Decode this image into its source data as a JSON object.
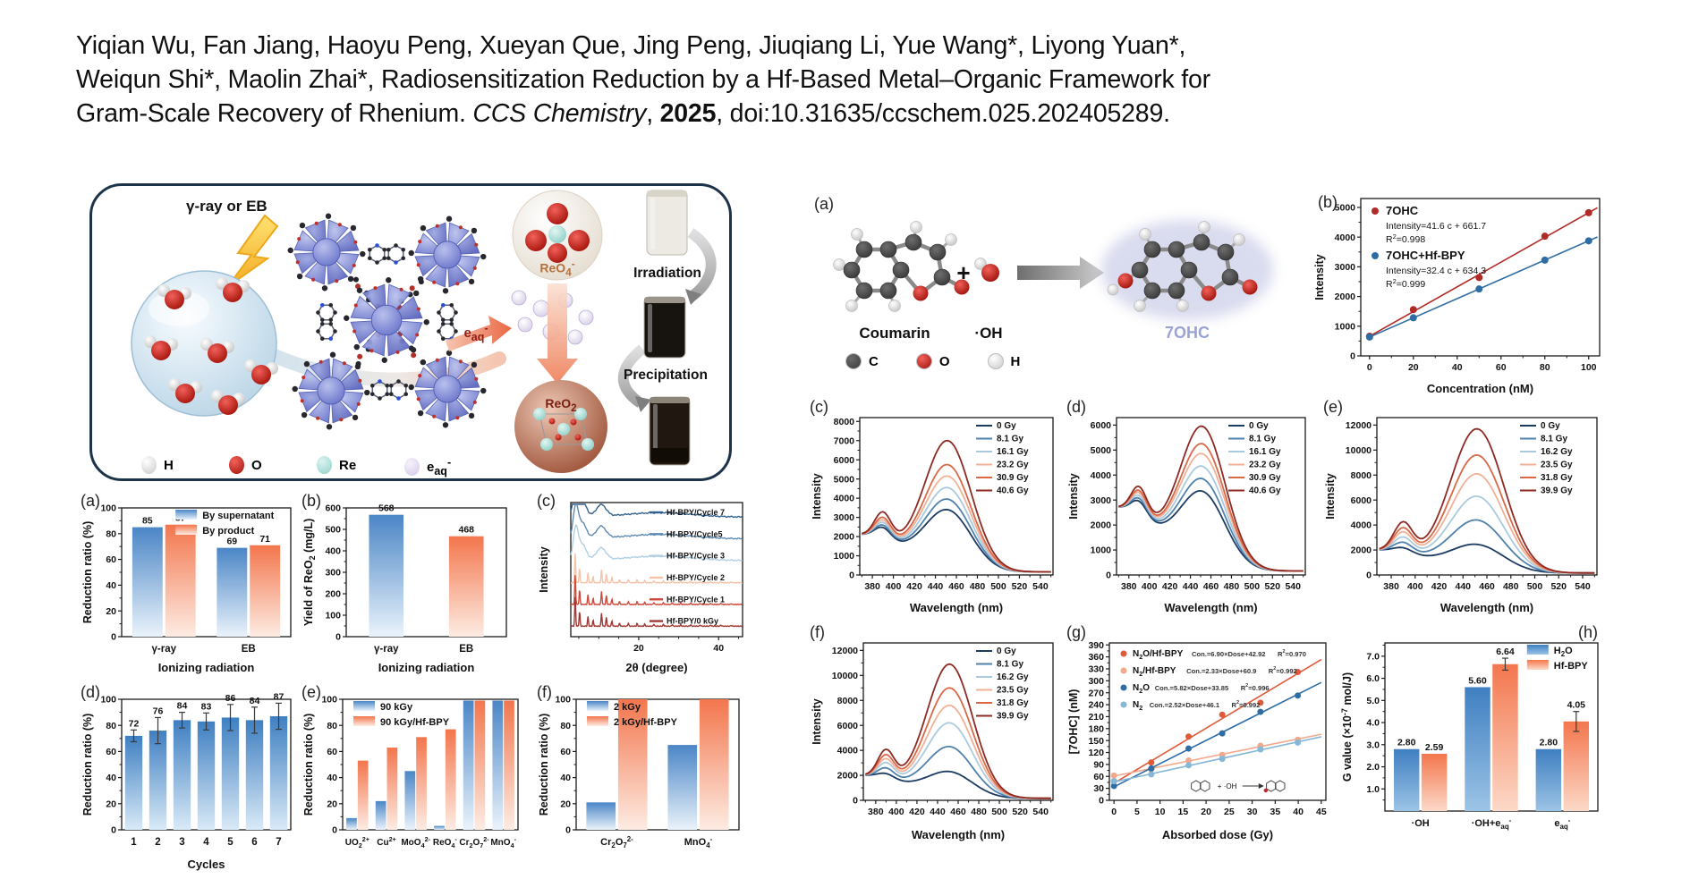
{
  "citation": {
    "line1": "Yiqian Wu, Fan Jiang, Haoyu Peng, Xueyan Que, Jing Peng, Jiuqiang Li, Yue Wang*, Liyong Yuan*,",
    "line2": "Weiqun Shi*, Maolin Zhai*, Radiosensitization Reduction by a Hf-Based Metal–Organic Framework for",
    "line3_prefix": "Gram-Scale Recovery of Rhenium. ",
    "journal": "CCS Chemistry",
    "line3_mid": ", ",
    "year": "2025",
    "line3_suffix": ", doi:10.31635/ccschem.025.202405289."
  },
  "abstract": {
    "beam_label": "γ-ray or EB",
    "eaq_label": "e_aq_^-^",
    "reo4_label": "ReO_4_^-^",
    "reo2_label": "ReO_2_",
    "irradiation_label": "Irradiation",
    "precipitation_label": "Precipitation",
    "legend": [
      {
        "label": "H",
        "c0": "#ffffff",
        "c1": "#c9c9c9"
      },
      {
        "label": "O",
        "c0": "#f2615a",
        "c1": "#9c120a"
      },
      {
        "label": "Re",
        "c0": "#dcf4f0",
        "c1": "#8fcfc8"
      },
      {
        "label": "e_aq_^-^",
        "c0": "#f6f2fb",
        "c1": "#d4c9e8"
      }
    ]
  },
  "scheme": {
    "panel": "(a)",
    "reactant_label": "Coumarin",
    "plus_sign": "+",
    "radical_label": "·OH",
    "product_label": "7OHC",
    "product_color": "#9aa3d4",
    "atom_legend": [
      {
        "label": "C",
        "c0": "#6a6a6a",
        "c1": "#3a3a3a"
      },
      {
        "label": "O",
        "c0": "#f2615a",
        "c1": "#9c120a"
      },
      {
        "label": "H",
        "c0": "#ffffff",
        "c1": "#c9c9c9"
      }
    ]
  },
  "chart_data": [
    {
      "id": "aL",
      "panel": "(a)",
      "type": "groupbar",
      "ylabel": "Reduction ratio (%)",
      "xlabel": "Ionizing radiation",
      "ylim": [
        0,
        100
      ],
      "ytick_step": 20,
      "categories": [
        "γ-ray",
        "EB"
      ],
      "legend_pos": "tr",
      "show_values": true,
      "series": [
        {
          "name": "By supernatant",
          "colors": [
            "#4b86c6",
            "#eaf3fb"
          ],
          "values": [
            85,
            69
          ],
          "value_labels": [
            "85",
            "69"
          ]
        },
        {
          "name": "By product",
          "colors": [
            "#f3764d",
            "#fdece3"
          ],
          "values": [
            87,
            71
          ],
          "value_labels": [
            "87",
            "71"
          ]
        }
      ]
    },
    {
      "id": "bL",
      "panel": "(b)",
      "type": "groupbar",
      "ylabel": "Yield of ReO_2_ (mg/L)",
      "xlabel": "Ionizing radiation",
      "ylim": [
        0,
        600
      ],
      "ytick_step": 100,
      "categories": [
        "γ-ray",
        "EB"
      ],
      "show_values": true,
      "series": [
        {
          "name": "",
          "bar_colors": [
            [
              "#4b86c6",
              "#eaf3fb"
            ],
            [
              "#f3764d",
              "#fdece3"
            ]
          ],
          "values": [
            568,
            468
          ],
          "value_labels": [
            "568",
            "468"
          ]
        }
      ]
    },
    {
      "id": "cL",
      "panel": "(c)",
      "type": "xrd",
      "ylabel": "Intensity",
      "xlabel": "2θ (degree)",
      "xlim": [
        3,
        46
      ],
      "xticks": [
        20,
        40
      ],
      "traces": [
        {
          "label": "Hf-BPY/Cycle 7",
          "color": "#35618e",
          "style": "broad"
        },
        {
          "label": "Hf-BPY/Cycle5",
          "color": "#5e8ab4",
          "style": "broad"
        },
        {
          "label": "Hf-BPY/Cycle 3",
          "color": "#b0cfe3",
          "style": "broad"
        },
        {
          "label": "Hf-BPY/Cycle 2",
          "color": "#f5c3a8",
          "style": "sharp"
        },
        {
          "label": "Hf-BPY/Cycle 1",
          "color": "#cf4a3d",
          "style": "sharp"
        },
        {
          "label": "Hf-BPY/0 kGy",
          "color": "#a03a35",
          "style": "sharp"
        }
      ]
    },
    {
      "id": "dL",
      "panel": "(d)",
      "type": "groupbar",
      "ylabel": "Reduction ratio (%)",
      "xlabel": "Cycles",
      "ylim": [
        0,
        100
      ],
      "ytick_step": 20,
      "categories": [
        "1",
        "2",
        "3",
        "4",
        "5",
        "6",
        "7"
      ],
      "show_values": true,
      "series": [
        {
          "name": "",
          "colors": [
            "#3f7fc1",
            "#d9eaf7"
          ],
          "values": [
            72,
            76,
            84,
            83,
            86,
            84,
            87
          ],
          "value_labels": [
            "72",
            "76",
            "84",
            "83",
            "86",
            "84",
            "87"
          ],
          "errors": [
            4.5,
            10,
            6,
            6.5,
            10,
            10,
            10
          ]
        }
      ]
    },
    {
      "id": "eL",
      "panel": "(e)",
      "type": "groupbar",
      "ylabel": "Reduction ratio (%)",
      "xlabel": "",
      "ylim": [
        0,
        100
      ],
      "ytick_step": 20,
      "cat_fs": 10,
      "categories": [
        "UO_2_^2+^",
        "Cu^2+^",
        "MoO_4_^2-^",
        "ReO_4_^-^",
        "Cr_2_O_7_^2-^",
        "MnO_4_^-^"
      ],
      "legend_pos": "tl",
      "series": [
        {
          "name": "90 kGy",
          "colors": [
            "#4b86c6",
            "#eaf3fb"
          ],
          "values": [
            9,
            22,
            45,
            3,
            99,
            99
          ]
        },
        {
          "name": "90 kGy/Hf-BPY",
          "colors": [
            "#f3764d",
            "#fdece3"
          ],
          "values": [
            53,
            63,
            71,
            77,
            99,
            99
          ]
        }
      ]
    },
    {
      "id": "fL",
      "panel": "(f)",
      "type": "groupbar",
      "ylabel": "Reduction ratio (%)",
      "xlabel": "",
      "ylim": [
        0,
        100
      ],
      "ytick_step": 20,
      "cat_fs": 11,
      "categories": [
        "Cr_2_O_7_^2-^",
        "MnO_4_^-^"
      ],
      "legend_pos": "tl",
      "series": [
        {
          "name": "2 kGy",
          "colors": [
            "#4b86c6",
            "#eaf3fb"
          ],
          "values": [
            21,
            65
          ]
        },
        {
          "name": "2 kGy/Hf-BPY",
          "colors": [
            "#f3764d",
            "#fdece3"
          ],
          "values": [
            100,
            100
          ]
        }
      ]
    },
    {
      "id": "bR",
      "panel": "(b)",
      "type": "scatter",
      "panel_xy": [
        8,
        40
      ],
      "legend_style": "big",
      "legend_pos": "tl",
      "xlabel": "Concentration (nM)",
      "ylabel": "Intensity",
      "xlim": [
        -4,
        105
      ],
      "xticks": [
        0,
        20,
        40,
        60,
        80,
        100
      ],
      "ylim": [
        0,
        5300
      ],
      "ytick_step": 1000,
      "series": [
        {
          "name": "7OHC",
          "eq": "Intensity=41.6 c + 661.7",
          "r2": "R^2^=0.998",
          "color": "#b02a26",
          "x": [
            0,
            20,
            50,
            80,
            100
          ],
          "y": [
            662,
            1560,
            2640,
            4030,
            4822
          ],
          "fit": [
            41.6,
            661.7
          ]
        },
        {
          "name": "7OHC+Hf-BPY",
          "eq": "Intensity=32.4 c + 634.3",
          "r2": "R^2^=0.999",
          "color": "#2e6da4",
          "x": [
            0,
            20,
            50,
            80,
            100
          ],
          "y": [
            634,
            1282,
            2254,
            3226,
            3874
          ],
          "fit": [
            32.4,
            634.3
          ]
        }
      ]
    },
    {
      "id": "cR",
      "panel": "(c)",
      "type": "spectra",
      "ylabel": "Intensity",
      "xlabel": "Wavelength (nm)",
      "xlim": [
        368,
        552
      ],
      "ylim": [
        0,
        8200
      ],
      "ytick_step": 1000,
      "env": 1950,
      "colors": [
        "#1c3b63",
        "#4f81ad",
        "#a9cadf",
        "#f2b096",
        "#d96847",
        "#8e2a23"
      ],
      "doses": [
        {
          "label": "0 Gy",
          "peak": 3400
        },
        {
          "label": "8.1 Gy",
          "peak": 3950
        },
        {
          "label": "16.1 Gy",
          "peak": 4550
        },
        {
          "label": "23.2 Gy",
          "peak": 5150
        },
        {
          "label": "30.9 Gy",
          "peak": 5750
        },
        {
          "label": "40.6 Gy",
          "peak": 7000
        }
      ]
    },
    {
      "id": "dR",
      "panel": "(d)",
      "type": "spectra",
      "ylabel": "Intensity",
      "xlabel": "Wavelength (nm)",
      "xlim": [
        368,
        552
      ],
      "ylim": [
        0,
        6300
      ],
      "ytick_step": 1000,
      "env": 2550,
      "colors": [
        "#1c3b63",
        "#4f81ad",
        "#a9cadf",
        "#f2b096",
        "#d96847",
        "#8e2a23"
      ],
      "doses": [
        {
          "label": "0 Gy",
          "peak": 3350
        },
        {
          "label": "8.1 Gy",
          "peak": 3850
        },
        {
          "label": "16.1 Gy",
          "peak": 4350
        },
        {
          "label": "23.2 Gy",
          "peak": 4850
        },
        {
          "label": "30.9 Gy",
          "peak": 5250
        },
        {
          "label": "40.6 Gy",
          "peak": 5950
        }
      ]
    },
    {
      "id": "eR",
      "panel": "(e)",
      "type": "spectra",
      "ylabel": "Intensity",
      "xlabel": "Wavelength (nm)",
      "xlim": [
        368,
        552
      ],
      "ylim": [
        0,
        12600
      ],
      "ytick_step": 2000,
      "env": 1850,
      "colors": [
        "#1c3b63",
        "#4f81ad",
        "#a9cadf",
        "#f2b096",
        "#d96847",
        "#8e2a23"
      ],
      "doses": [
        {
          "label": "0 Gy",
          "peak": 2450
        },
        {
          "label": "8.1 Gy",
          "peak": 4400
        },
        {
          "label": "16.2 Gy",
          "peak": 6300
        },
        {
          "label": "23.5 Gy",
          "peak": 8100
        },
        {
          "label": "31.8 Gy",
          "peak": 9600
        },
        {
          "label": "39.9 Gy",
          "peak": 11700
        }
      ]
    },
    {
      "id": "fR",
      "panel": "(f)",
      "type": "spectra",
      "ylabel": "Intensity",
      "xlabel": "Wavelength (nm)",
      "xlim": [
        368,
        552
      ],
      "ylim": [
        0,
        12600
      ],
      "ytick_step": 2000,
      "env": 1850,
      "colors": [
        "#1c3b63",
        "#4f81ad",
        "#a9cadf",
        "#f2b096",
        "#d96847",
        "#8e2a23"
      ],
      "doses": [
        {
          "label": "0 Gy",
          "peak": 2300
        },
        {
          "label": "8.1 Gy",
          "peak": 4300
        },
        {
          "label": "16.2 Gy",
          "peak": 6200
        },
        {
          "label": "23.5 Gy",
          "peak": 7600
        },
        {
          "label": "31.8 Gy",
          "peak": 9000
        },
        {
          "label": "39.9 Gy",
          "peak": 10900
        }
      ]
    },
    {
      "id": "gR",
      "panel": "(g)",
      "type": "scatter",
      "legend_style": "inline",
      "legend_pos": "tl",
      "inset": true,
      "xlabel": "Absorbed dose (Gy)",
      "ylabel": "[7OHC] (nM)",
      "xlim": [
        -1,
        46
      ],
      "xticks": [
        0,
        5,
        10,
        15,
        20,
        25,
        30,
        35,
        40,
        45
      ],
      "ylim": [
        0,
        395
      ],
      "ytick_step": 30,
      "series": [
        {
          "name": "N_2_O/Hf-BPY",
          "eq": "Con.=6.90×Dose+42.92",
          "r2": "R^2^=0.970",
          "color": "#e05a3a",
          "x": [
            0,
            8.1,
            16.2,
            23.5,
            31.8,
            39.9
          ],
          "y": [
            48,
            95,
            160,
            215,
            245,
            322
          ],
          "fit": [
            6.9,
            42.92
          ]
        },
        {
          "name": "N_2_/Hf-BPY",
          "eq": "Con.=2.33×Dose+60.9",
          "r2": "R^2^=0.992",
          "color": "#f2a98c",
          "x": [
            0,
            8.1,
            16.2,
            23.5,
            31.8,
            39.9
          ],
          "y": [
            62,
            78,
            100,
            114,
            137,
            152
          ],
          "fit": [
            2.33,
            60.9
          ]
        },
        {
          "name": "N_2_O",
          "eq": "Con.=5.82×Dose+33.85",
          "r2": "R^2^=0.996",
          "color": "#2e6da4",
          "x": [
            0,
            8.1,
            16.2,
            23.5,
            31.8,
            39.9
          ],
          "y": [
            36,
            80,
            130,
            168,
            222,
            263
          ],
          "fit": [
            5.82,
            33.85
          ]
        },
        {
          "name": "N_2_",
          "eq": "Con.=2.52×Dose+46.1",
          "r2": "R^2^=0.992",
          "color": "#85b7d6",
          "x": [
            0,
            8.1,
            16.2,
            23.5,
            31.8,
            39.9
          ],
          "y": [
            48,
            65,
            88,
            104,
            128,
            145
          ],
          "fit": [
            2.52,
            46.1
          ]
        }
      ]
    },
    {
      "id": "hR",
      "panel": "(h)",
      "type": "groupbar",
      "panel_xy": [
        268,
        18
      ],
      "ylabel": "G value (×10^-7^ mol/J)",
      "xlabel": "",
      "ylim": [
        0,
        7.6
      ],
      "yticks": [
        1,
        2,
        3,
        4,
        5,
        6,
        7
      ],
      "ytick_labels": [
        "1.0",
        "2.0",
        "3.0",
        "4.0",
        "5.0",
        "6.0",
        "7.0"
      ],
      "categories": [
        "·OH",
        "·OH+e_aq_^-^",
        "e_aq_^-^"
      ],
      "legend_pos": "tr",
      "show_values": true,
      "cat_fs": 11,
      "series": [
        {
          "name": "H_2_O",
          "colors": [
            "#3f7fc1",
            "#9cc4e6"
          ],
          "values": [
            2.8,
            5.6,
            2.8
          ],
          "value_labels": [
            "2.80",
            "5.60",
            "2.80"
          ],
          "errors": [
            0,
            0,
            0
          ]
        },
        {
          "name": "Hf-BPY",
          "colors": [
            "#f3764d",
            "#fcd9c8"
          ],
          "values": [
            2.59,
            6.64,
            4.05
          ],
          "value_labels": [
            "2.59",
            "6.64",
            "4.05"
          ],
          "errors": [
            0,
            0.27,
            0.45
          ]
        }
      ]
    }
  ]
}
